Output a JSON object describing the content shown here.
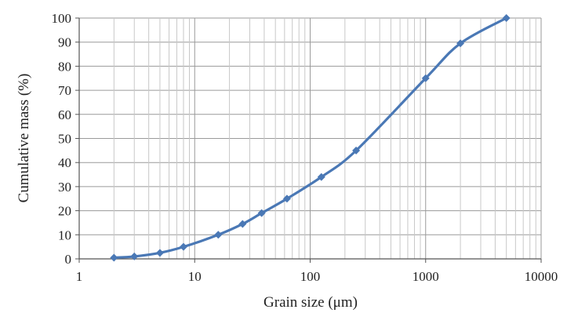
{
  "chart_data": {
    "type": "line",
    "title": "",
    "xlabel": "Grain size (μm)",
    "ylabel": "Cumulative mass (%)",
    "x_scale": "log",
    "xlim": [
      1,
      10000
    ],
    "ylim": [
      0,
      100
    ],
    "x_ticks": [
      "1",
      "10",
      "100",
      "1000",
      "10000"
    ],
    "y_ticks": [
      "0",
      "10",
      "20",
      "30",
      "40",
      "50",
      "60",
      "70",
      "80",
      "90",
      "100"
    ],
    "grid": true,
    "legend": "none",
    "series": [
      {
        "color": "#4a78b5",
        "marker": "diamond",
        "points": [
          {
            "x": 2,
            "y": 0.5
          },
          {
            "x": 3,
            "y": 1
          },
          {
            "x": 5,
            "y": 2.5
          },
          {
            "x": 8,
            "y": 5
          },
          {
            "x": 16,
            "y": 10
          },
          {
            "x": 26,
            "y": 14.5
          },
          {
            "x": 38,
            "y": 19
          },
          {
            "x": 63,
            "y": 25
          },
          {
            "x": 125,
            "y": 34
          },
          {
            "x": 250,
            "y": 45
          },
          {
            "x": 1000,
            "y": 75
          },
          {
            "x": 2000,
            "y": 89.5
          },
          {
            "x": 5000,
            "y": 100
          }
        ]
      }
    ]
  }
}
